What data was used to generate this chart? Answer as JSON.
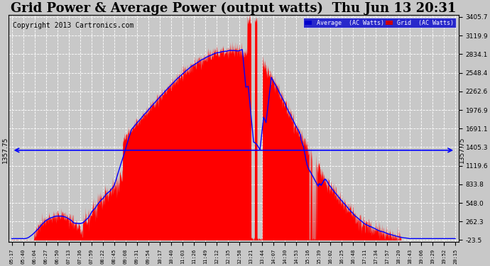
{
  "title": "Grid Power & Average Power (output watts)  Thu Jun 13 20:31",
  "copyright": "Copyright 2013 Cartronics.com",
  "legend_items": [
    {
      "label": "Average  (AC Watts)",
      "facecolor": "#0000cc",
      "textcolor": "white"
    },
    {
      "label": "Grid  (AC Watts)",
      "facecolor": "#cc0000",
      "textcolor": "white"
    }
  ],
  "yticks_right": [
    3405.7,
    3119.9,
    2834.1,
    2548.4,
    2262.6,
    1976.9,
    1691.1,
    1405.3,
    1119.6,
    833.8,
    548.0,
    262.3,
    -23.5
  ],
  "ymin": -23.5,
  "ymax": 3405.7,
  "hline_y": 1357.75,
  "hline_label": "1357.75",
  "background_color": "#c8c8c8",
  "plot_bg": "#c8c8c8",
  "grid_color": "white",
  "fill_color": "#ff0000",
  "line_color": "#0000ff",
  "xtick_labels": [
    "05:17",
    "05:40",
    "06:04",
    "06:27",
    "06:50",
    "07:13",
    "07:36",
    "07:59",
    "08:22",
    "08:45",
    "09:08",
    "09:31",
    "09:54",
    "10:17",
    "10:40",
    "11:03",
    "11:26",
    "11:49",
    "12:12",
    "12:35",
    "12:58",
    "13:21",
    "13:44",
    "14:07",
    "14:30",
    "14:53",
    "15:16",
    "15:39",
    "16:02",
    "16:25",
    "16:48",
    "17:11",
    "17:34",
    "17:57",
    "18:20",
    "18:43",
    "19:06",
    "19:29",
    "19:52",
    "20:15"
  ],
  "title_fontsize": 13,
  "copyright_fontsize": 7
}
